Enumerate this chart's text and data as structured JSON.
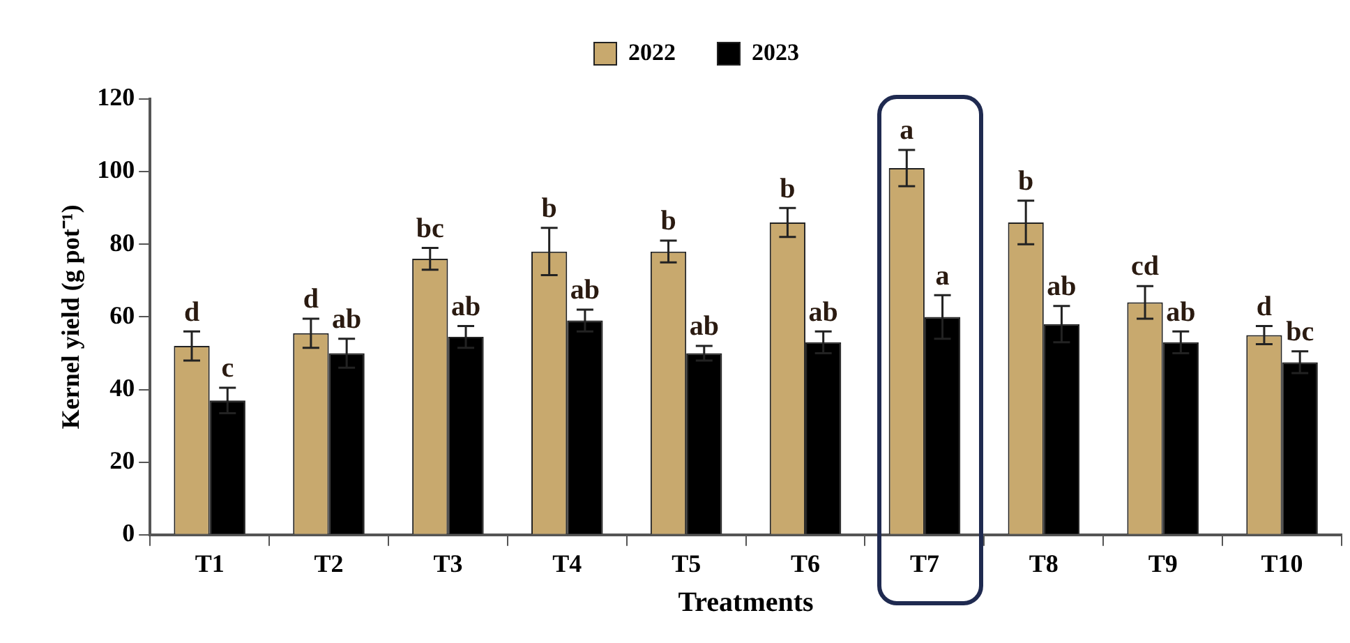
{
  "chart_data": {
    "type": "bar",
    "xlabel": "Treatments",
    "ylabel": "Kernel yield (g pot⁻¹)",
    "categories": [
      "T1",
      "T2",
      "T3",
      "T4",
      "T5",
      "T6",
      "T7",
      "T8",
      "T9",
      "T10"
    ],
    "series": [
      {
        "name": "2022",
        "color": "#c8a96e",
        "values": [
          52,
          55.5,
          76,
          78,
          78,
          86,
          101,
          86,
          64,
          55
        ],
        "errors": [
          4,
          4,
          3,
          6.5,
          3,
          4,
          5,
          6,
          4.5,
          2.5
        ],
        "value_labels": [
          "d",
          "d",
          "bc",
          "b",
          "b",
          "b",
          "a",
          "b",
          "cd",
          "d"
        ]
      },
      {
        "name": "2023",
        "color": "#000000",
        "values": [
          37,
          50,
          54.5,
          59,
          50,
          53,
          60,
          58,
          53,
          47.5
        ],
        "errors": [
          3.5,
          4,
          3,
          3,
          2,
          3,
          6,
          5,
          3,
          3
        ],
        "value_labels": [
          "c",
          "ab",
          "ab",
          "ab",
          "ab",
          "ab",
          "a",
          "ab",
          "ab",
          "bc"
        ]
      }
    ],
    "ylim": [
      0,
      120
    ],
    "yticks": [
      0,
      20,
      40,
      60,
      80,
      100,
      120
    ],
    "grid": false,
    "legend": "top"
  }
}
